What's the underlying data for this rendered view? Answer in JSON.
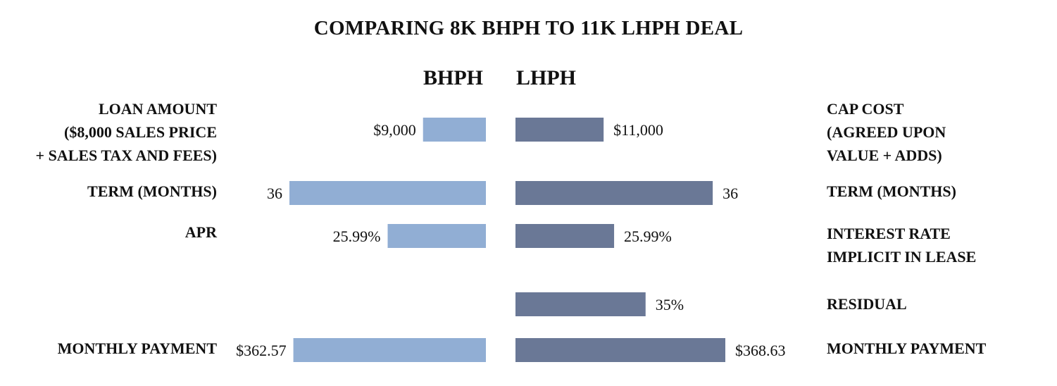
{
  "title": "COMPARING 8K BHPH TO 11K LHPH DEAL",
  "headers": {
    "bhph": "BHPH",
    "lhph": "LHPH"
  },
  "colors": {
    "bhph": "#91AED4",
    "lhph": "#6A7896"
  },
  "chart_data": {
    "type": "bar",
    "orientation": "horizontal-butterfly",
    "title": "COMPARING 8K BHPH TO 11K LHPH DEAL",
    "series": [
      {
        "name": "BHPH",
        "side": "left"
      },
      {
        "name": "LHPH",
        "side": "right"
      }
    ],
    "rows": [
      {
        "left_label": [
          "LOAN AMOUNT",
          "($8,000 SALES PRICE",
          "+ SALES TAX AND FEES)"
        ],
        "right_label": [
          "CAP COST",
          "(AGREED UPON",
          "VALUE + ADDS)"
        ],
        "bhph": {
          "value": 9000,
          "label": "$9,000",
          "bar_fraction": 0.32
        },
        "lhph": {
          "value": 11000,
          "label": "$11,000",
          "bar_fraction": 0.42
        }
      },
      {
        "left_label": [
          "TERM (MONTHS)"
        ],
        "right_label": [
          "TERM (MONTHS)"
        ],
        "bhph": {
          "value": 36,
          "label": "36",
          "bar_fraction": 1.0
        },
        "lhph": {
          "value": 36,
          "label": "36",
          "bar_fraction": 0.94
        }
      },
      {
        "left_label": [
          "APR"
        ],
        "right_label": [
          "INTEREST RATE",
          "IMPLICIT IN LEASE"
        ],
        "bhph": {
          "value": 25.99,
          "label": "25.99%",
          "bar_fraction": 0.5
        },
        "lhph": {
          "value": 25.99,
          "label": "25.99%",
          "bar_fraction": 0.47
        }
      },
      {
        "left_label": [],
        "right_label": [
          "RESIDUAL"
        ],
        "bhph": null,
        "lhph": {
          "value": 35,
          "label": "35%",
          "bar_fraction": 0.62
        }
      },
      {
        "left_label": [
          "MONTHLY PAYMENT"
        ],
        "right_label": [
          "MONTHLY PAYMENT"
        ],
        "bhph": {
          "value": 362.57,
          "label": "$362.57",
          "bar_fraction": 0.98
        },
        "lhph": {
          "value": 368.63,
          "label": "$368.63",
          "bar_fraction": 1.0
        }
      }
    ]
  }
}
